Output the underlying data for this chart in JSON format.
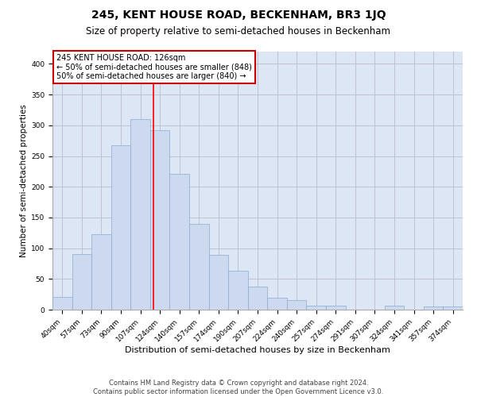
{
  "title": "245, KENT HOUSE ROAD, BECKENHAM, BR3 1JQ",
  "subtitle": "Size of property relative to semi-detached houses in Beckenham",
  "xlabel": "Distribution of semi-detached houses by size in Beckenham",
  "ylabel": "Number of semi-detached properties",
  "categories": [
    "40sqm",
    "57sqm",
    "73sqm",
    "90sqm",
    "107sqm",
    "124sqm",
    "140sqm",
    "157sqm",
    "174sqm",
    "190sqm",
    "207sqm",
    "224sqm",
    "240sqm",
    "257sqm",
    "274sqm",
    "291sqm",
    "307sqm",
    "324sqm",
    "341sqm",
    "357sqm",
    "374sqm"
  ],
  "bar_heights": [
    21,
    90,
    123,
    267,
    310,
    292,
    221,
    140,
    89,
    63,
    38,
    20,
    15,
    7,
    7,
    0,
    0,
    7,
    0,
    5,
    5
  ],
  "bar_color": "#ccd9ee",
  "bar_edge_color": "#8aaad0",
  "bar_width": 1.0,
  "ylim": [
    0,
    420
  ],
  "yticks": [
    0,
    50,
    100,
    150,
    200,
    250,
    300,
    350,
    400
  ],
  "grid_color": "#bbbbcc",
  "bg_color": "#dce6f5",
  "vline_x": 4.65,
  "property_label": "245 KENT HOUSE ROAD: 126sqm",
  "smaller_text": "← 50% of semi-detached houses are smaller (848)",
  "larger_text": "50% of semi-detached houses are larger (840) →",
  "annotation_box_color": "#ffffff",
  "annotation_box_edge": "#cc0000",
  "footer1": "Contains HM Land Registry data © Crown copyright and database right 2024.",
  "footer2": "Contains public sector information licensed under the Open Government Licence v3.0.",
  "title_fontsize": 10,
  "subtitle_fontsize": 8.5,
  "xlabel_fontsize": 8,
  "ylabel_fontsize": 7.5,
  "annot_fontsize": 7,
  "tick_fontsize": 6.5,
  "footer_fontsize": 6
}
